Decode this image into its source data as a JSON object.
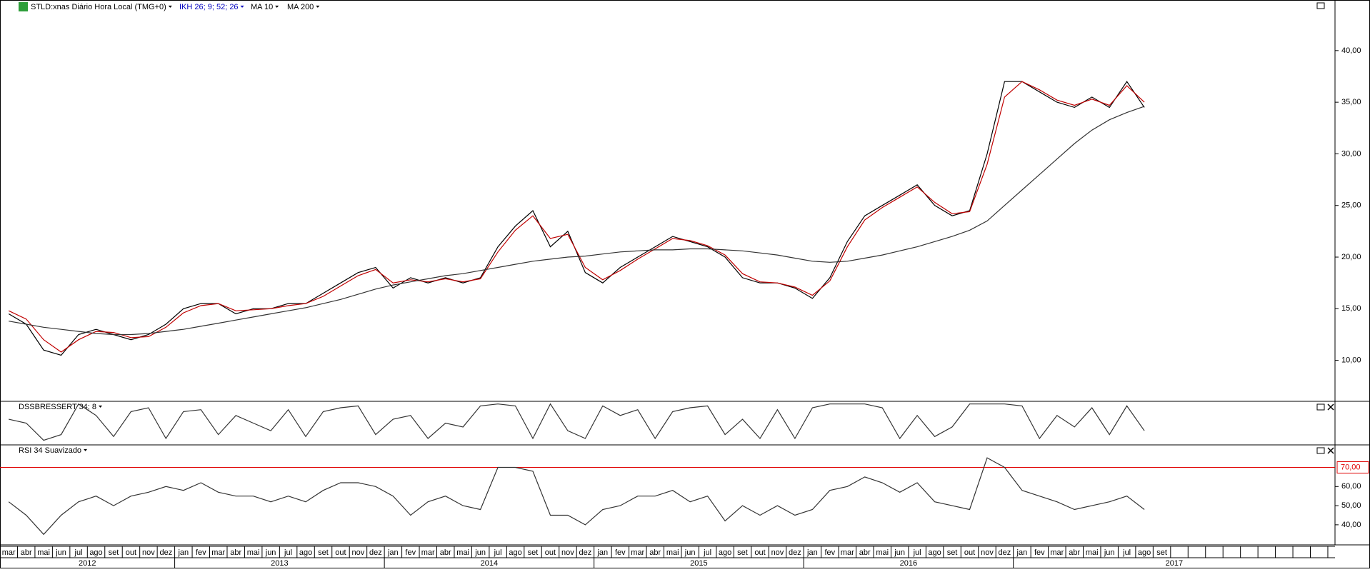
{
  "chart_data": [
    {
      "type": "line",
      "categories": [
        "mar",
        "abr",
        "mai",
        "jun",
        "jul",
        "ago",
        "set",
        "out",
        "nov",
        "dez",
        "jan",
        "fev",
        "mar",
        "abr",
        "mai",
        "jun",
        "jul",
        "ago",
        "set",
        "out",
        "nov",
        "dez",
        "jan",
        "fev",
        "mar",
        "abr",
        "mai",
        "jun",
        "jul",
        "ago",
        "set",
        "out",
        "nov",
        "dez",
        "jan",
        "fev",
        "mar",
        "abr",
        "mai",
        "jun",
        "jul",
        "ago",
        "set",
        "out",
        "nov",
        "dez",
        "jan",
        "fev",
        "mar",
        "abr",
        "mai",
        "jun",
        "jul",
        "ago",
        "set",
        "out",
        "nov",
        "dez",
        "jan",
        "fev",
        "mar",
        "abr",
        "mai",
        "jun",
        "jul",
        "ago",
        "set"
      ],
      "years": [
        "2012",
        "2013",
        "2014",
        "2015",
        "2016",
        "2017"
      ],
      "indicators": [
        "IKH 26; 9; 52; 26"
      ],
      "series": [
        {
          "name": "STLD:xnas Diário Hora Local (TMG+0)",
          "color": "#000000",
          "values": [
            14.5,
            13.5,
            11,
            10.5,
            12.5,
            13,
            12.5,
            12,
            12.5,
            13.5,
            15,
            15.5,
            15.5,
            14.5,
            15,
            15,
            15.5,
            15.5,
            16.5,
            17.5,
            18.5,
            19,
            17,
            18,
            17.5,
            18,
            17.5,
            18,
            21,
            23,
            24.5,
            21,
            22.5,
            18.5,
            17.5,
            19,
            20,
            21,
            22,
            21.5,
            21,
            20,
            18,
            17.5,
            17.5,
            17,
            16,
            18,
            21.5,
            24,
            25,
            26,
            27,
            25,
            24,
            24.5,
            30,
            37,
            37,
            36,
            35,
            34.5,
            35.5,
            34.5,
            37,
            34.5,
            null
          ]
        },
        {
          "name": "MA 10",
          "color": "#c00000",
          "values": [
            14.8,
            14,
            12,
            10.8,
            12,
            12.8,
            12.7,
            12.2,
            12.3,
            13.2,
            14.6,
            15.3,
            15.5,
            14.8,
            14.9,
            15,
            15.3,
            15.5,
            16.2,
            17.2,
            18.2,
            18.8,
            17.5,
            17.8,
            17.6,
            17.9,
            17.6,
            17.9,
            20.5,
            22.6,
            24,
            21.8,
            22.2,
            19,
            17.8,
            18.7,
            19.8,
            20.8,
            21.8,
            21.6,
            21.1,
            20.2,
            18.4,
            17.6,
            17.5,
            17.1,
            16.3,
            17.7,
            21,
            23.6,
            24.8,
            25.8,
            26.8,
            25.3,
            24.2,
            24.4,
            29,
            35.5,
            37,
            36.2,
            35.2,
            34.7,
            35.3,
            34.7,
            36.6,
            35,
            null
          ]
        },
        {
          "name": "MA 200",
          "color": "#333333",
          "values": [
            13.8,
            13.5,
            13.2,
            13,
            12.8,
            12.6,
            12.5,
            12.5,
            12.6,
            12.8,
            13,
            13.3,
            13.6,
            13.9,
            14.2,
            14.5,
            14.8,
            15.1,
            15.5,
            15.9,
            16.4,
            16.9,
            17.3,
            17.6,
            17.9,
            18.2,
            18.4,
            18.7,
            19,
            19.3,
            19.6,
            19.8,
            20,
            20.1,
            20.3,
            20.5,
            20.6,
            20.7,
            20.7,
            20.8,
            20.8,
            20.7,
            20.6,
            20.4,
            20.2,
            19.9,
            19.6,
            19.5,
            19.6,
            19.9,
            20.2,
            20.6,
            21,
            21.5,
            22,
            22.6,
            23.5,
            25,
            26.5,
            28,
            29.5,
            31,
            32.3,
            33.3,
            34,
            34.6,
            null
          ]
        }
      ],
      "ylim": [
        6.1,
        44.9
      ],
      "yticks": [
        {
          "value": 10,
          "label": "10,00"
        },
        {
          "value": 15,
          "label": "15,00"
        },
        {
          "value": 20,
          "label": "20,00"
        },
        {
          "value": 25,
          "label": "25,00"
        },
        {
          "value": 30,
          "label": "30,00"
        },
        {
          "value": 35,
          "label": "35,00"
        },
        {
          "value": 40,
          "label": "40,00"
        }
      ]
    },
    {
      "type": "line",
      "title": "DSSBRESSERT 34; 8",
      "color": "#333333",
      "values": [
        60,
        50,
        5,
        20,
        100,
        70,
        15,
        80,
        90,
        10,
        80,
        85,
        20,
        70,
        50,
        30,
        85,
        15,
        80,
        90,
        95,
        20,
        60,
        70,
        10,
        50,
        40,
        95,
        100,
        95,
        10,
        100,
        30,
        10,
        95,
        70,
        85,
        10,
        80,
        90,
        95,
        20,
        60,
        10,
        85,
        10,
        90,
        100,
        100,
        100,
        90,
        10,
        70,
        15,
        40,
        100,
        100,
        100,
        95,
        10,
        70,
        40,
        90,
        20,
        95,
        30,
        null
      ],
      "ylim": [
        -5,
        105
      ]
    },
    {
      "type": "line",
      "title": "RSI 34 Suavizado",
      "color": "#333333",
      "values": [
        52,
        45,
        35,
        45,
        52,
        55,
        50,
        55,
        57,
        60,
        58,
        62,
        57,
        55,
        55,
        52,
        55,
        52,
        58,
        62,
        62,
        60,
        55,
        45,
        52,
        55,
        50,
        48,
        70,
        70,
        68,
        45,
        45,
        40,
        48,
        50,
        55,
        55,
        58,
        52,
        55,
        42,
        50,
        45,
        50,
        45,
        48,
        58,
        60,
        65,
        62,
        57,
        62,
        52,
        50,
        48,
        75,
        70,
        58,
        55,
        52,
        48,
        50,
        52,
        55,
        48,
        null
      ],
      "ylim": [
        29.5,
        81.4
      ],
      "yticks": [
        {
          "value": 40,
          "label": "40,00"
        },
        {
          "value": 50,
          "label": "50,00"
        },
        {
          "value": 60,
          "label": "60,00"
        }
      ],
      "hline": {
        "value": 70,
        "label": "70,00",
        "color": "#e00000"
      }
    }
  ]
}
